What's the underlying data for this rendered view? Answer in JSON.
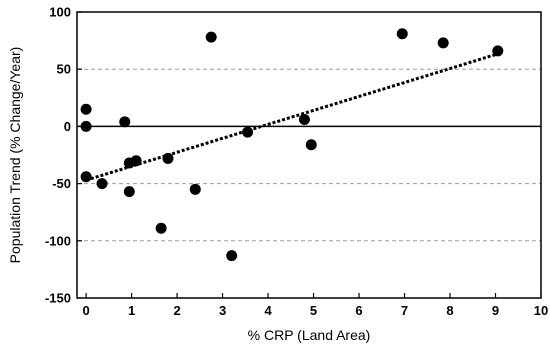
{
  "chart_data": {
    "type": "scatter",
    "title": "",
    "xlabel": "% CRP (Land Area)",
    "ylabel": "Population Trend (% Change/Year)",
    "xlim": [
      -0.2,
      10
    ],
    "ylim": [
      -150,
      100
    ],
    "xticks": [
      0,
      1,
      2,
      3,
      4,
      5,
      6,
      7,
      8,
      9,
      10
    ],
    "yticks": [
      -150,
      -100,
      -50,
      0,
      50,
      100
    ],
    "gridlines_y": [
      -100,
      -50,
      50
    ],
    "zero_line": 0,
    "grid": "dashed horizontal",
    "legend": "none",
    "series": [
      {
        "points": [
          {
            "x": 0.0,
            "y": 15
          },
          {
            "x": 0.0,
            "y": 0
          },
          {
            "x": 0.0,
            "y": -44
          },
          {
            "x": 0.35,
            "y": -50
          },
          {
            "x": 0.85,
            "y": 4
          },
          {
            "x": 0.95,
            "y": -32
          },
          {
            "x": 0.95,
            "y": -57
          },
          {
            "x": 1.1,
            "y": -30
          },
          {
            "x": 1.65,
            "y": -89
          },
          {
            "x": 1.8,
            "y": -28
          },
          {
            "x": 2.4,
            "y": -55
          },
          {
            "x": 2.75,
            "y": 78
          },
          {
            "x": 3.2,
            "y": -113
          },
          {
            "x": 3.55,
            "y": -5
          },
          {
            "x": 4.8,
            "y": 6
          },
          {
            "x": 4.95,
            "y": -16
          },
          {
            "x": 6.95,
            "y": 81
          },
          {
            "x": 7.85,
            "y": 73
          },
          {
            "x": 9.05,
            "y": 66
          }
        ]
      }
    ],
    "trendline": {
      "x0": 0.0,
      "y0": -47,
      "x1": 9.1,
      "y1": 64,
      "style": "dotted"
    },
    "colors": {
      "marker": "#000000",
      "grid": "#9a9a9a",
      "axis": "#000000"
    }
  }
}
